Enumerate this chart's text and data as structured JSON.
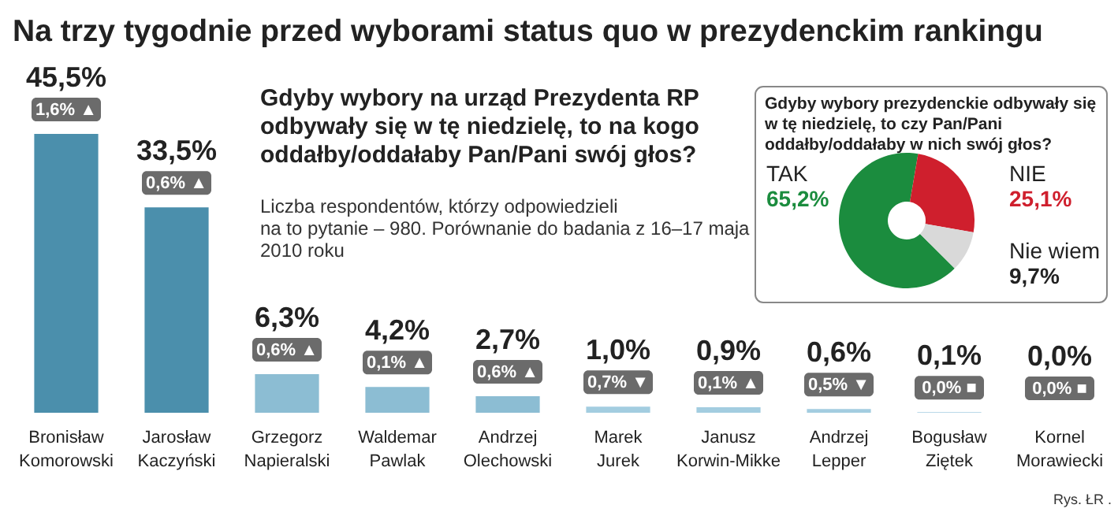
{
  "chart_data": [
    {
      "type": "bar",
      "title": "Na trzy tygodnie przed wyborami status quo w prezydenckim rankingu",
      "subtitle": "Gdyby wybory na urząd Prezydenta RP\nodbywały się w tę niedzielę, to na kogo\noddałby/oddałaby Pan/Pani swój głos?",
      "categories": [
        "Bronisław Komorowski",
        "Jarosław Kaczyński",
        "Grzegorz Napieralski",
        "Waldemar Pawlak",
        "Andrzej Olechowski",
        "Marek Jurek",
        "Janusz Korwin-Mikke",
        "Andrzej Lepper",
        "Bogusław Ziętek",
        "Kornel Morawiecki"
      ],
      "values": [
        45.5,
        33.5,
        6.3,
        4.2,
        2.7,
        1.0,
        0.9,
        0.6,
        0.1,
        0.0
      ],
      "colors": [
        "#4b8fac",
        "#4b8fac",
        "#8cbdd3",
        "#8cbdd3",
        "#8cbdd3",
        "#a3cde0",
        "#a3cde0",
        "#a3cde0",
        "#a3cde0",
        "#a3cde0"
      ],
      "value_labels": [
        "45,5%",
        "33,5%",
        "6,3%",
        "4,2%",
        "2,7%",
        "1,0%",
        "0,9%",
        "0,6%",
        "0,1%",
        "0,0%"
      ],
      "annotations": [
        {
          "text": "1,6% ▲",
          "x": "Bronisław Komorowski",
          "y": 45.5
        },
        {
          "text": "0,6% ▲",
          "x": "Jarosław Kaczyński",
          "y": 33.5
        },
        {
          "text": "0,6% ▲",
          "x": "Grzegorz Napieralski",
          "y": 6.3
        },
        {
          "text": "0,1% ▲",
          "x": "Waldemar Pawlak",
          "y": 4.2
        },
        {
          "text": "0,6% ▲",
          "x": "Andrzej Olechowski",
          "y": 2.7
        },
        {
          "text": "0,7% ▼",
          "x": "Marek Jurek",
          "y": 1.0
        },
        {
          "text": "0,1% ▲",
          "x": "Janusz Korwin-Mikke",
          "y": 0.9
        },
        {
          "text": "0,5% ▼",
          "x": "Andrzej Lepper",
          "y": 0.6
        },
        {
          "text": "0,0% ■",
          "x": "Bogusław Ziętek",
          "y": 0.1
        },
        {
          "text": "0,0% ■",
          "x": "Kornel Morawiecki",
          "y": 0.0
        },
        "Liczba respondentów, którzy odpowiedzieli\nna to pytanie – 980. Porównanie do badania z 16–17 maja\n2010 roku",
        "Rys. ŁR ."
      ]
    },
    {
      "type": "donut",
      "title": "Gdyby wybory prezydenckie odbywały się\nw tę niedzielę, to czy Pan/Pani\noddałby/oddałaby w nich swój głos?",
      "categories": [
        "TAK",
        "NIE",
        "Nie wiem"
      ],
      "values": [
        65.2,
        25.1,
        9.7
      ],
      "colors": [
        "#1b8c3e",
        "#cf1f2d",
        "#d9d9d9"
      ],
      "value_labels": [
        "65,2%",
        "25,1%",
        "9,7%"
      ]
    }
  ]
}
